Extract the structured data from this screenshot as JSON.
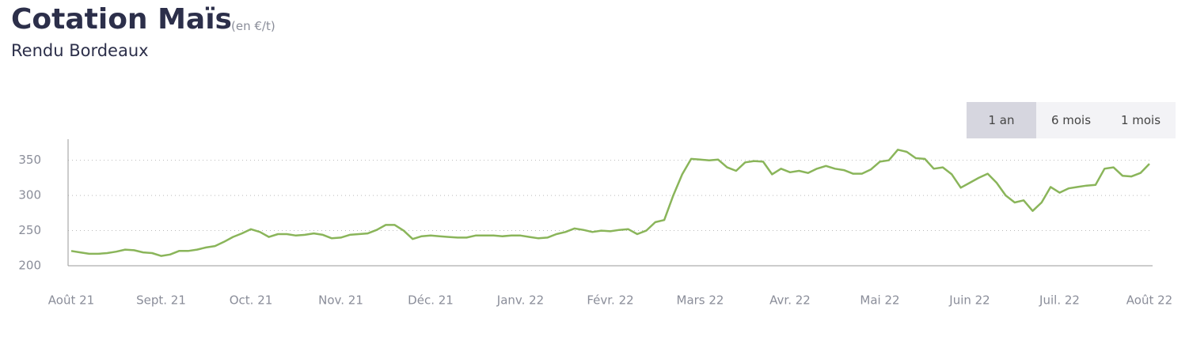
{
  "header": {
    "title": "Cotation Maïs",
    "unit": "(en €/t)",
    "subtitle": "Rendu Bordeaux"
  },
  "range_buttons": {
    "labels": [
      "1 an",
      "6 mois",
      "1 mois"
    ],
    "selected": 0
  },
  "chart_data": {
    "type": "line",
    "color": "#8ab55a",
    "grid": true,
    "ylim": [
      200,
      380
    ],
    "yticks": [
      200,
      250,
      300,
      350
    ],
    "categories": [
      "Août 21",
      null,
      null,
      null,
      null,
      null,
      null,
      null,
      null,
      null,
      "Sept. 21",
      null,
      null,
      null,
      null,
      null,
      null,
      null,
      null,
      null,
      "Oct. 21",
      null,
      null,
      null,
      null,
      null,
      null,
      null,
      null,
      null,
      "Nov. 21",
      null,
      null,
      null,
      null,
      null,
      null,
      null,
      null,
      null,
      "Déc. 21",
      null,
      null,
      null,
      null,
      null,
      null,
      null,
      null,
      null,
      "Janv. 22",
      null,
      null,
      null,
      null,
      null,
      null,
      null,
      null,
      null,
      "Févr. 22",
      null,
      null,
      null,
      null,
      null,
      null,
      null,
      null,
      null,
      "Mars 22",
      null,
      null,
      null,
      null,
      null,
      null,
      null,
      null,
      null,
      "Avr. 22",
      null,
      null,
      null,
      null,
      null,
      null,
      null,
      null,
      null,
      "Mai 22",
      null,
      null,
      null,
      null,
      null,
      null,
      null,
      null,
      null,
      "Juin 22",
      null,
      null,
      null,
      null,
      null,
      null,
      null,
      null,
      null,
      "Juil. 22",
      null,
      null,
      null,
      null,
      null,
      null,
      null,
      null,
      null,
      "Août 22"
    ],
    "values": [
      221,
      219,
      217,
      217,
      218,
      220,
      223,
      222,
      219,
      218,
      214,
      216,
      221,
      221,
      223,
      226,
      228,
      234,
      241,
      246,
      252,
      248,
      241,
      245,
      245,
      243,
      244,
      246,
      244,
      239,
      240,
      244,
      245,
      246,
      251,
      258,
      258,
      250,
      238,
      242,
      243,
      242,
      241,
      240,
      240,
      243,
      243,
      243,
      242,
      243,
      243,
      241,
      239,
      240,
      245,
      248,
      253,
      251,
      248,
      250,
      249,
      251,
      252,
      245,
      250,
      262,
      265,
      300,
      330,
      352,
      351,
      350,
      351,
      340,
      335,
      347,
      349,
      348,
      330,
      338,
      333,
      335,
      332,
      338,
      342,
      338,
      336,
      331,
      331,
      337,
      348,
      350,
      365,
      362,
      353,
      352,
      338,
      340,
      330,
      311,
      318,
      325,
      331,
      318,
      300,
      290,
      293,
      278,
      290,
      312,
      304,
      310,
      312,
      314,
      315,
      338,
      340,
      328,
      327,
      332,
      345
    ]
  }
}
